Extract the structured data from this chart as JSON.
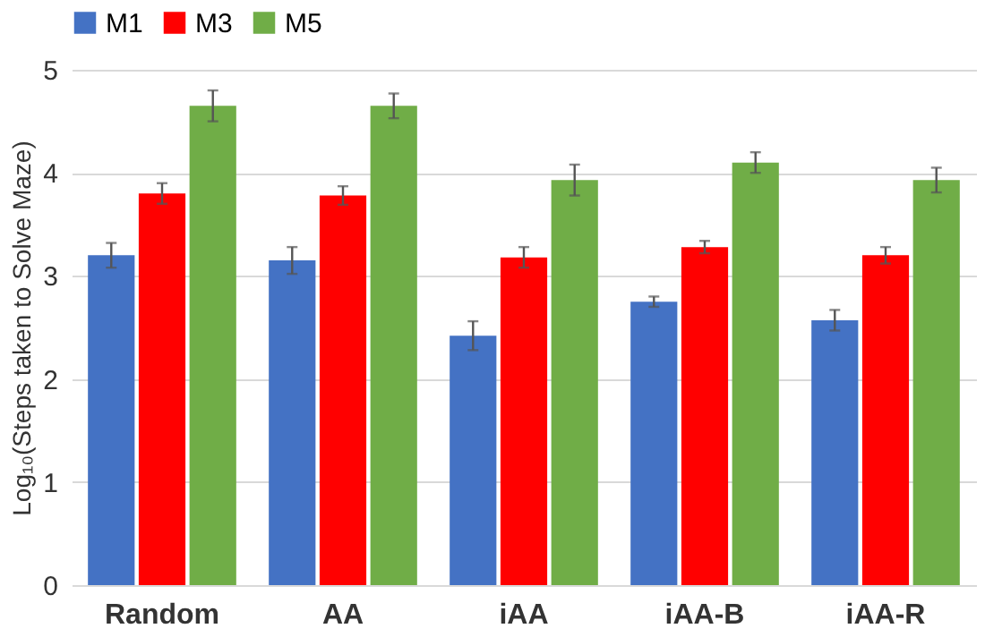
{
  "chart_data": {
    "type": "bar",
    "ylabel": "Log₁₀(Steps taken to Solve Maze)",
    "categories": [
      "Random",
      "AA",
      "iAA",
      "iAA-B",
      "iAA-R"
    ],
    "series": [
      {
        "name": "M1",
        "color": "#4472c4",
        "values": [
          3.2,
          3.15,
          2.42,
          2.75,
          2.57
        ],
        "errors": [
          0.12,
          0.13,
          0.14,
          0.05,
          0.1
        ]
      },
      {
        "name": "M3",
        "color": "#ff0000",
        "values": [
          3.8,
          3.78,
          3.18,
          3.28,
          3.2
        ],
        "errors": [
          0.1,
          0.09,
          0.1,
          0.06,
          0.08
        ]
      },
      {
        "name": "M5",
        "color": "#70ad47",
        "values": [
          4.65,
          4.65,
          3.93,
          4.1,
          3.93
        ],
        "errors": [
          0.15,
          0.12,
          0.15,
          0.1,
          0.12
        ]
      }
    ],
    "ylim": [
      0,
      5
    ],
    "yticks": [
      0,
      1,
      2,
      3,
      4,
      5
    ],
    "grid": "y",
    "legend": "top"
  }
}
